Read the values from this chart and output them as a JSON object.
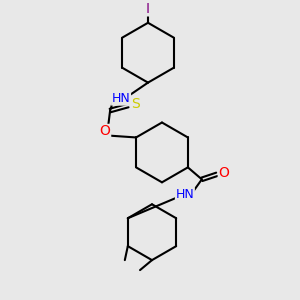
{
  "bg_color": "#e8e8e8",
  "bond_color": "#000000",
  "atom_colors": {
    "I": "#800080",
    "N": "#0000ff",
    "H": "#000000",
    "S": "#cccc00",
    "O": "#ff0000",
    "C": "#000000"
  },
  "font_size_atoms": 9,
  "line_width": 1.5,
  "figsize": [
    3.0,
    3.0
  ],
  "dpi": 100
}
